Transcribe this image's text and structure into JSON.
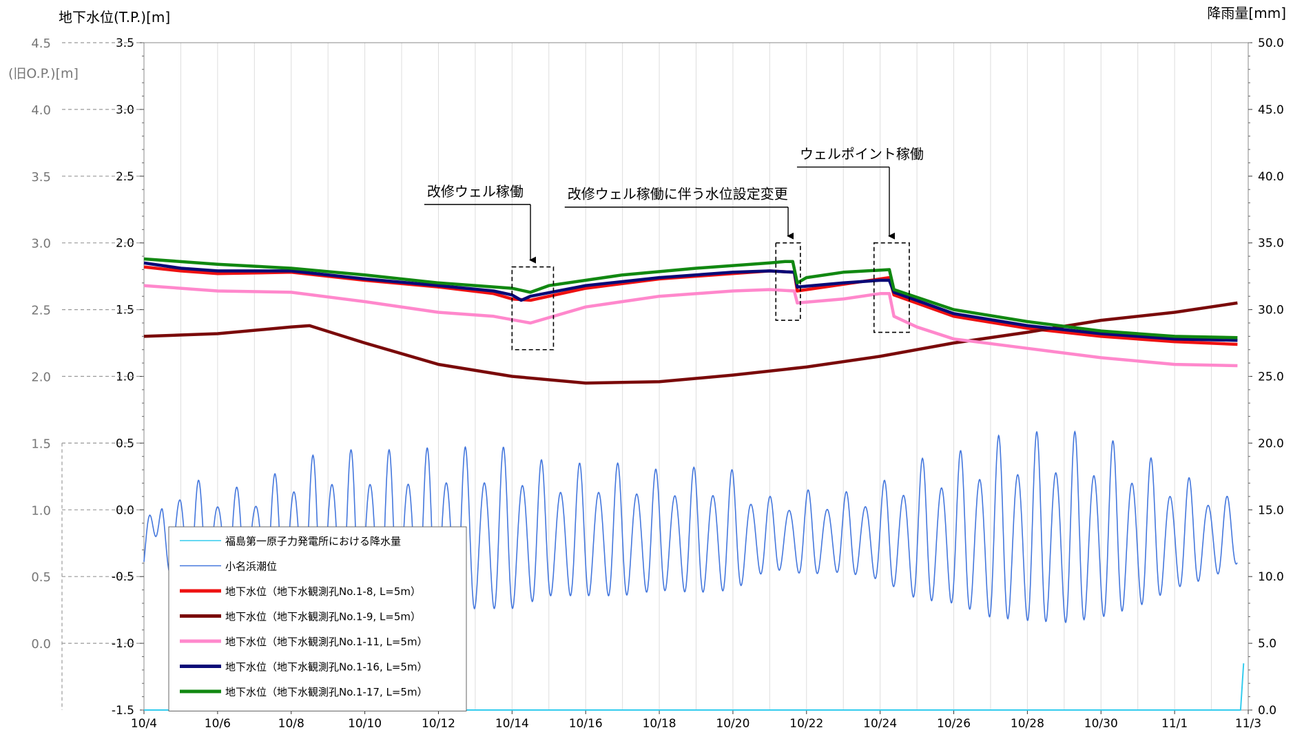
{
  "chart_data": {
    "type": "line",
    "left_axis_label": "地下水位(T.P.)[m]",
    "old_axis_label": "(旧O.P.)[m]",
    "right_axis_label": "降雨量[mm]",
    "ylim": [
      -1.5,
      3.5
    ],
    "y2lim": [
      0,
      50
    ],
    "y_ticks": [
      "3.5",
      "3.0",
      "2.5",
      "2.0",
      "1.5",
      "1.0",
      "0.5",
      "0.0",
      "-0.5",
      "-1.0",
      "-1.5"
    ],
    "old_ticks": [
      "4.5",
      "4.0",
      "3.5",
      "3.0",
      "2.5",
      "2.0",
      "1.5",
      "1.0",
      "0.5",
      "0.0"
    ],
    "y2_ticks": [
      "50.0",
      "45.0",
      "40.0",
      "35.0",
      "30.0",
      "25.0",
      "20.0",
      "15.0",
      "10.0",
      "5.0",
      "0.0"
    ],
    "x_ticks": [
      "10/4",
      "10/6",
      "10/8",
      "10/10",
      "10/12",
      "10/14",
      "10/16",
      "10/18",
      "10/20",
      "10/22",
      "10/24",
      "10/26",
      "10/28",
      "10/30",
      "11/1",
      "11/3"
    ],
    "xlim": [
      "10/4",
      "11/3"
    ],
    "series": [
      {
        "name": "福島第一原子力発電所における降水量",
        "color": "#33ccee",
        "axis": "right",
        "points": [
          [
            "10/4",
            0
          ],
          [
            "11/2 19:00",
            0
          ],
          [
            "11/2 21:00",
            3.5
          ]
        ]
      },
      {
        "name": "小名浜潮位",
        "color": "#4477dd",
        "axis": "left",
        "tide": true,
        "points": [
          [
            "10/4",
            -0.65
          ],
          [
            "10/4 12:00",
            0.05
          ],
          [
            "10/5",
            0.27
          ],
          [
            "10/6",
            0.17
          ],
          [
            "10/7",
            0.17
          ],
          [
            "10/8",
            0.35
          ],
          [
            "10/9",
            0.45
          ],
          [
            "10/10",
            0.45
          ],
          [
            "10/11",
            0.45
          ],
          [
            "10/12",
            0.47
          ],
          [
            "10/13",
            0.47
          ],
          [
            "10/14",
            0.47
          ],
          [
            "10/15",
            0.35
          ],
          [
            "10/16",
            0.35
          ],
          [
            "10/17",
            0.35
          ],
          [
            "10/18",
            0.3
          ],
          [
            "10/19",
            0.32
          ],
          [
            "10/20",
            0.3
          ],
          [
            "10/21",
            0.1
          ],
          [
            "10/22",
            0.15
          ],
          [
            "10/23",
            0.13
          ],
          [
            "10/24",
            0.2
          ],
          [
            "10/25",
            0.38
          ],
          [
            "10/26",
            0.42
          ],
          [
            "10/27",
            0.55
          ],
          [
            "10/28",
            0.58
          ],
          [
            "10/29",
            0.6
          ],
          [
            "10/30",
            0.55
          ],
          [
            "10/31",
            0.45
          ],
          [
            "11/1",
            0.28
          ],
          [
            "11/2",
            0.18
          ],
          [
            "11/2 17:00",
            0.05
          ]
        ]
      },
      {
        "name": "地下水位（地下水観測孔No.1-8, L=5m）",
        "color": "#ee1111",
        "axis": "left",
        "points": [
          [
            "10/4",
            1.82
          ],
          [
            "10/5",
            1.79
          ],
          [
            "10/6",
            1.77
          ],
          [
            "10/8",
            1.78
          ],
          [
            "10/10",
            1.72
          ],
          [
            "10/12",
            1.67
          ],
          [
            "10/13 12:00",
            1.62
          ],
          [
            "10/14",
            1.58
          ],
          [
            "10/14 12:00",
            1.57
          ],
          [
            "10/16",
            1.66
          ],
          [
            "10/18",
            1.73
          ],
          [
            "10/20",
            1.77
          ],
          [
            "10/21",
            1.79
          ],
          [
            "10/21 16:00",
            1.78
          ],
          [
            "10/21 18:00",
            1.64
          ],
          [
            "10/23",
            1.69
          ],
          [
            "10/24",
            1.73
          ],
          [
            "10/24 06:00",
            1.74
          ],
          [
            "10/24 09:00",
            1.61
          ],
          [
            "10/26",
            1.45
          ],
          [
            "10/28",
            1.36
          ],
          [
            "10/30",
            1.3
          ],
          [
            "11/1",
            1.26
          ],
          [
            "11/2 17:00",
            1.24
          ]
        ]
      },
      {
        "name": "地下水位（地下水観測孔No.1-9, L=5m）",
        "color": "#7a0a0a",
        "axis": "left",
        "points": [
          [
            "10/4",
            1.3
          ],
          [
            "10/6",
            1.32
          ],
          [
            "10/8",
            1.37
          ],
          [
            "10/8 12:00",
            1.38
          ],
          [
            "10/10",
            1.25
          ],
          [
            "10/12",
            1.09
          ],
          [
            "10/14",
            1.0
          ],
          [
            "10/16",
            0.95
          ],
          [
            "10/18",
            0.96
          ],
          [
            "10/20",
            1.01
          ],
          [
            "10/22",
            1.07
          ],
          [
            "10/24",
            1.15
          ],
          [
            "10/26",
            1.25
          ],
          [
            "10/28",
            1.33
          ],
          [
            "10/30",
            1.42
          ],
          [
            "11/1",
            1.48
          ],
          [
            "11/2 17:00",
            1.55
          ]
        ]
      },
      {
        "name": "地下水位（地下水観測孔No.1-11, L=5m）",
        "color": "#ff88cc",
        "axis": "left",
        "points": [
          [
            "10/4",
            1.68
          ],
          [
            "10/6",
            1.64
          ],
          [
            "10/8",
            1.63
          ],
          [
            "10/10",
            1.56
          ],
          [
            "10/12",
            1.48
          ],
          [
            "10/13 12:00",
            1.45
          ],
          [
            "10/14 12:00",
            1.4
          ],
          [
            "10/16",
            1.52
          ],
          [
            "10/18",
            1.6
          ],
          [
            "10/20",
            1.64
          ],
          [
            "10/21",
            1.65
          ],
          [
            "10/21 16:00",
            1.64
          ],
          [
            "10/21 18:00",
            1.55
          ],
          [
            "10/23",
            1.58
          ],
          [
            "10/24",
            1.62
          ],
          [
            "10/24 06:00",
            1.62
          ],
          [
            "10/24 09:00",
            1.45
          ],
          [
            "10/25",
            1.37
          ],
          [
            "10/26",
            1.28
          ],
          [
            "10/28",
            1.21
          ],
          [
            "10/30",
            1.14
          ],
          [
            "11/1",
            1.09
          ],
          [
            "11/2 17:00",
            1.08
          ]
        ]
      },
      {
        "name": "地下水位（地下水観測孔No.1-16, L=5m）",
        "color": "#0a0a77",
        "axis": "left",
        "points": [
          [
            "10/4",
            1.85
          ],
          [
            "10/5",
            1.81
          ],
          [
            "10/6",
            1.79
          ],
          [
            "10/8",
            1.79
          ],
          [
            "10/10",
            1.73
          ],
          [
            "10/12",
            1.68
          ],
          [
            "10/13 12:00",
            1.64
          ],
          [
            "10/14",
            1.61
          ],
          [
            "10/14 06:00",
            1.57
          ],
          [
            "10/14 12:00",
            1.6
          ],
          [
            "10/16",
            1.68
          ],
          [
            "10/18",
            1.74
          ],
          [
            "10/20",
            1.78
          ],
          [
            "10/21",
            1.79
          ],
          [
            "10/21 16:00",
            1.78
          ],
          [
            "10/21 18:00",
            1.67
          ],
          [
            "10/23",
            1.7
          ],
          [
            "10/24",
            1.72
          ],
          [
            "10/24 06:00",
            1.72
          ],
          [
            "10/24 09:00",
            1.63
          ],
          [
            "10/26",
            1.47
          ],
          [
            "10/28",
            1.38
          ],
          [
            "10/30",
            1.32
          ],
          [
            "11/1",
            1.28
          ],
          [
            "11/2 17:00",
            1.27
          ]
        ]
      },
      {
        "name": "地下水位（地下水観測孔No.1-17, L=5m）",
        "color": "#118811",
        "axis": "left",
        "points": [
          [
            "10/4",
            1.88
          ],
          [
            "10/6",
            1.84
          ],
          [
            "10/8",
            1.81
          ],
          [
            "10/10",
            1.76
          ],
          [
            "10/12",
            1.7
          ],
          [
            "10/14",
            1.66
          ],
          [
            "10/14 12:00",
            1.63
          ],
          [
            "10/15",
            1.68
          ],
          [
            "10/17",
            1.76
          ],
          [
            "10/19",
            1.81
          ],
          [
            "10/21",
            1.85
          ],
          [
            "10/21 10:00",
            1.86
          ],
          [
            "10/21 15:00",
            1.86
          ],
          [
            "10/21 18:00",
            1.7
          ],
          [
            "10/22",
            1.74
          ],
          [
            "10/23",
            1.78
          ],
          [
            "10/24 06:00",
            1.8
          ],
          [
            "10/24 09:00",
            1.65
          ],
          [
            "10/26",
            1.5
          ],
          [
            "10/28",
            1.41
          ],
          [
            "10/30",
            1.34
          ],
          [
            "11/1",
            1.3
          ],
          [
            "11/2 17:00",
            1.29
          ]
        ]
      }
    ],
    "annotations": [
      {
        "text": "改修ウェル稼働",
        "label_x": "10/13",
        "label_y": 2.35,
        "arrow_x": "10/14 12:00",
        "box": [
          "10/14",
          "10/15 03:00",
          1.82,
          1.2
        ]
      },
      {
        "text": "改修ウェル稼働に伴う水位設定変更",
        "label_x": "10/18 12:00",
        "label_y": 2.33,
        "arrow_x": "10/21 12:00",
        "box": [
          "10/21 04:00",
          "10/21 20:00",
          2.0,
          1.42
        ]
      },
      {
        "text": "ウェルポイント稼働",
        "label_x": "10/23 12:00",
        "label_y": 2.63,
        "arrow_x": "10/24 06:00",
        "box": [
          "10/23 20:00",
          "10/24 19:00",
          2.0,
          1.33
        ]
      }
    ]
  }
}
